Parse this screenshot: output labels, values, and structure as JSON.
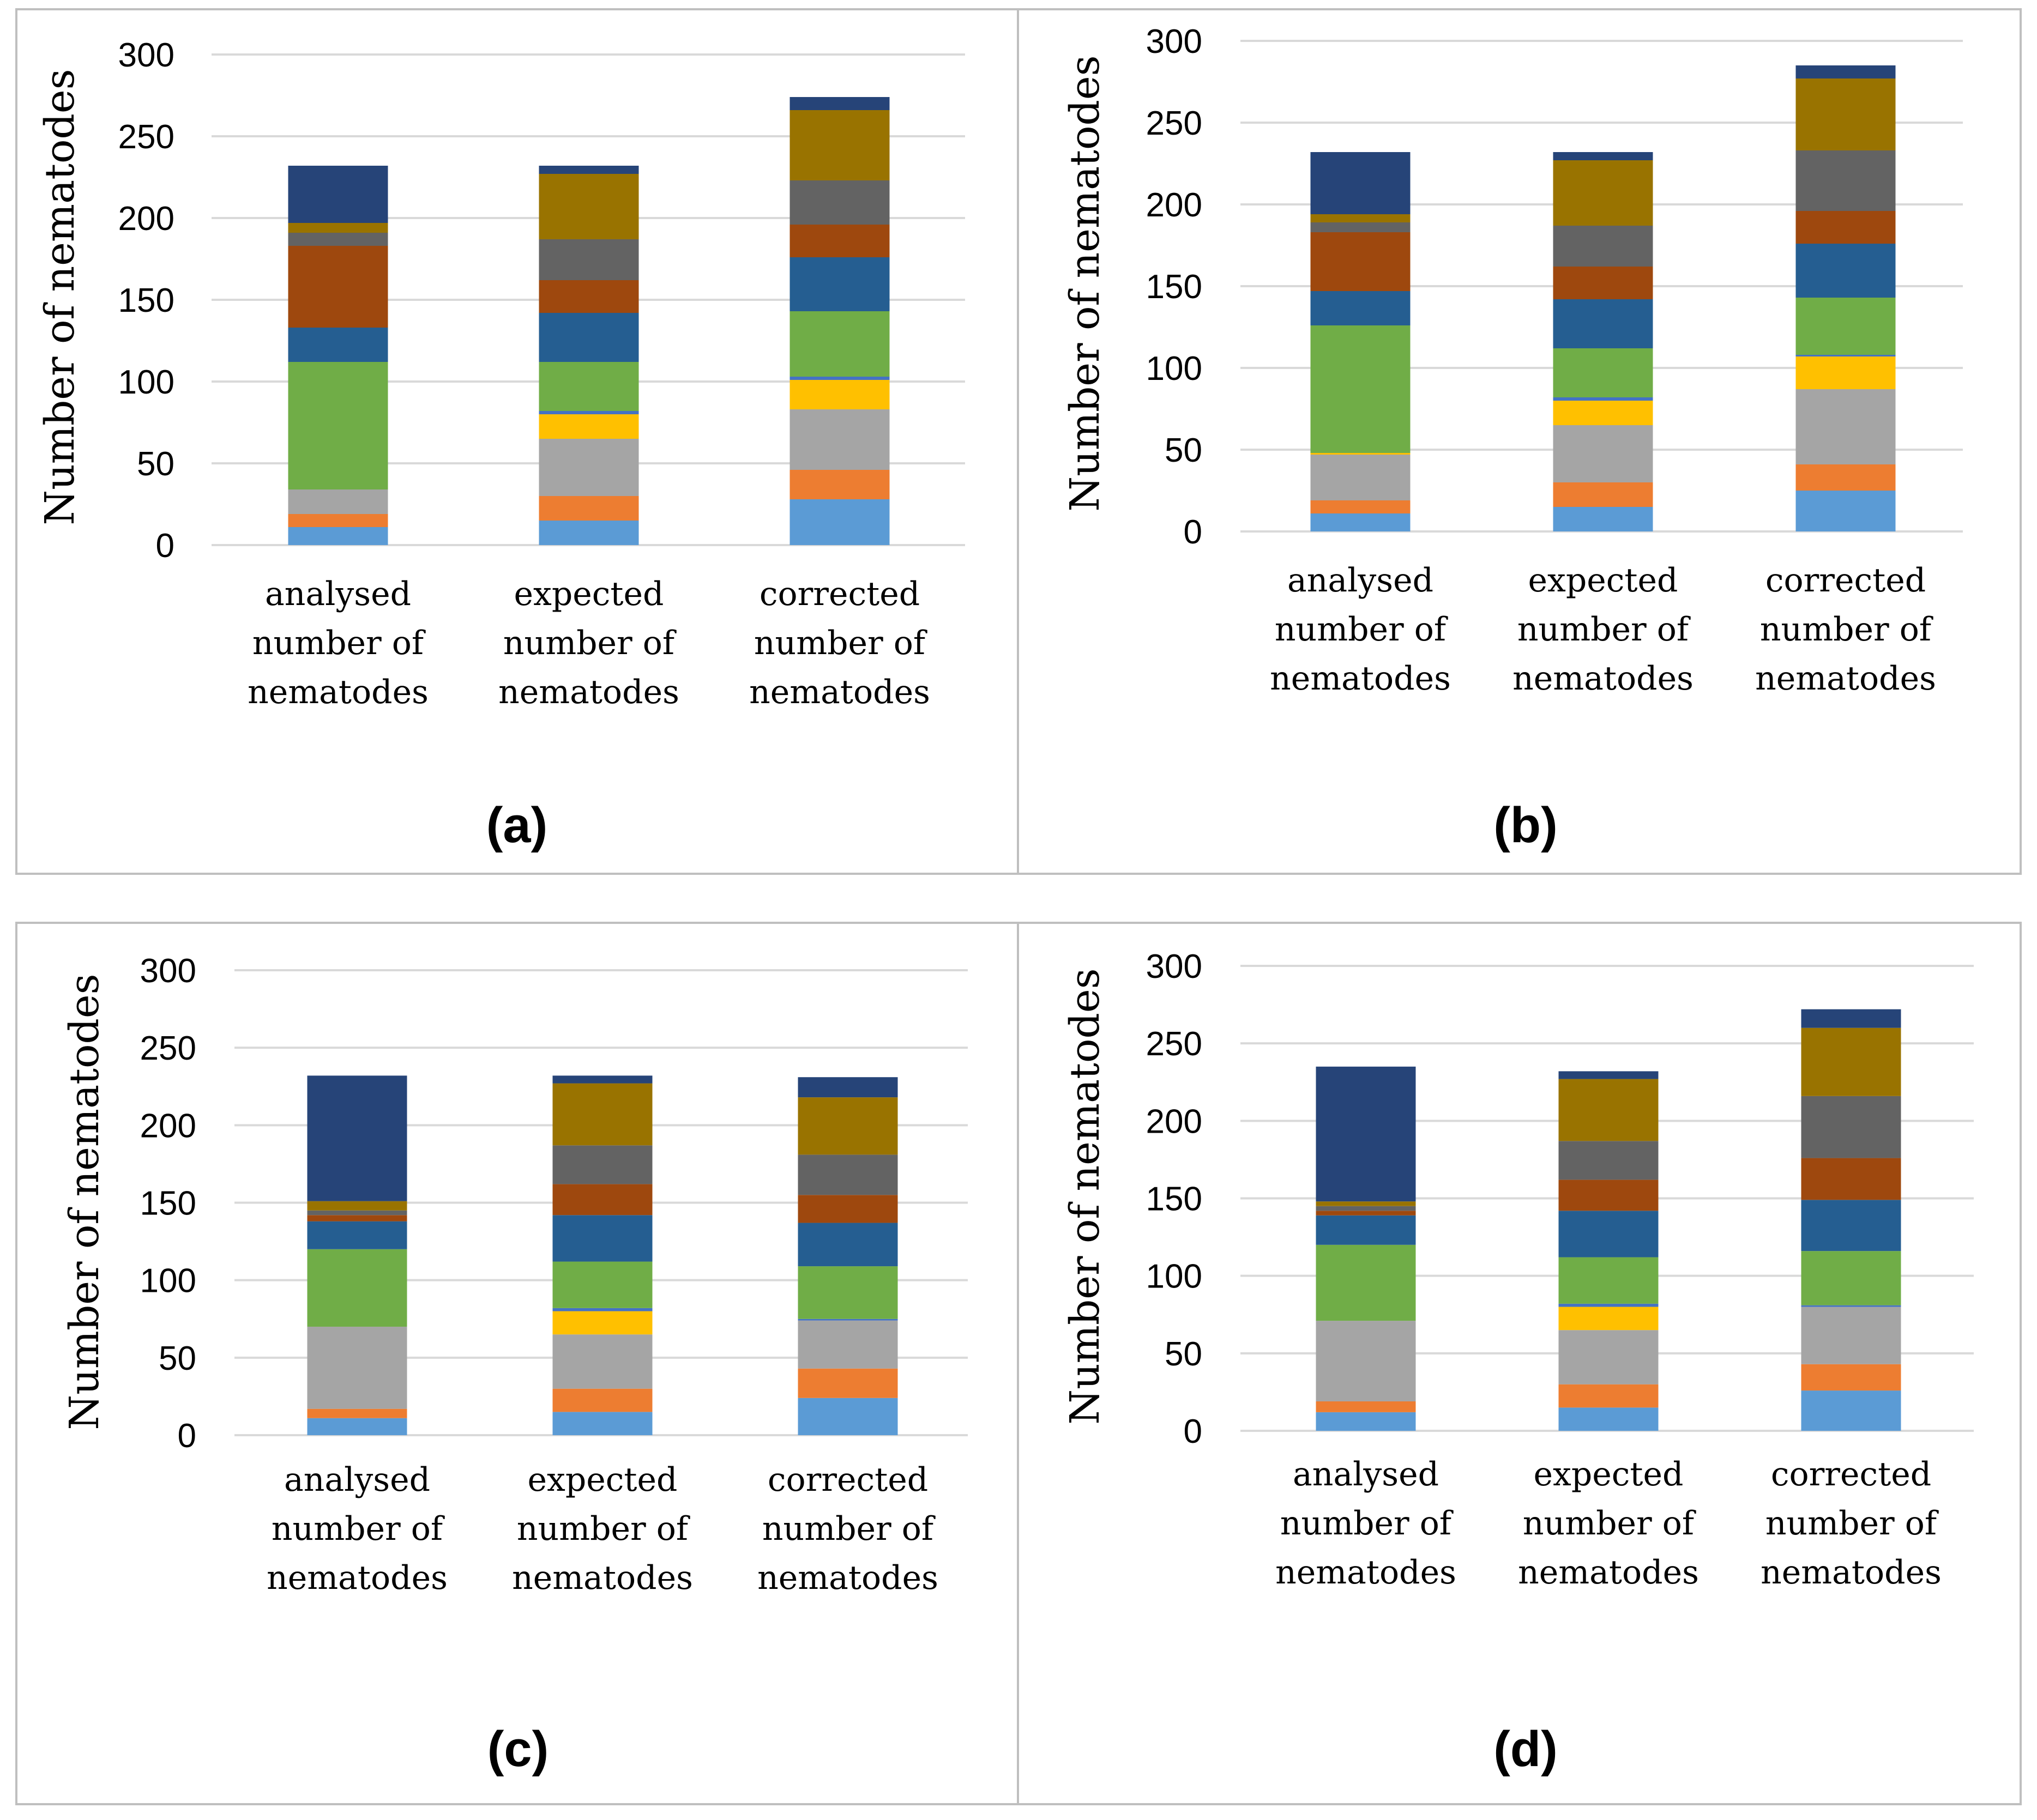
{
  "colors": {
    "segments": [
      "#5B9BD5",
      "#ED7D31",
      "#A5A5A5",
      "#FFC000",
      "#4472C4",
      "#70AD47",
      "#255E91",
      "#9E480E",
      "#636363",
      "#997300",
      "#264478"
    ],
    "grid": "#D9D9D9",
    "frame": "#BFBFBF",
    "text": "#000000"
  },
  "chart_data": [
    {
      "type": "bar",
      "stacked": true,
      "panel_label": "(a)",
      "ylabel": "Number of nematodes",
      "ylim": [
        0,
        300
      ],
      "yticks": [
        0,
        50,
        100,
        150,
        200,
        250,
        300
      ],
      "categories": [
        [
          "analysed",
          "number of",
          "nematodes"
        ],
        [
          "expected",
          "number of",
          "nematodes"
        ],
        [
          "corrected",
          "number of",
          "nematodes"
        ]
      ],
      "bars": [
        [
          11,
          8,
          15,
          0,
          0,
          78,
          21,
          50,
          8,
          6,
          35
        ],
        [
          15,
          15,
          35,
          15,
          2,
          30,
          30,
          20,
          25,
          40,
          5
        ],
        [
          28,
          18,
          37,
          18,
          2,
          40,
          33,
          20,
          27,
          43,
          8
        ]
      ]
    },
    {
      "type": "bar",
      "stacked": true,
      "panel_label": "(b)",
      "ylabel": "Number of nematodes",
      "ylim": [
        0,
        300
      ],
      "yticks": [
        0,
        50,
        100,
        150,
        200,
        250,
        300
      ],
      "categories": [
        [
          "analysed",
          "number of",
          "nematodes"
        ],
        [
          "expected",
          "number of",
          "nematodes"
        ],
        [
          "corrected",
          "number of",
          "nematodes"
        ]
      ],
      "bars": [
        [
          11,
          8,
          28,
          1,
          0,
          78,
          21,
          36,
          6,
          5,
          38
        ],
        [
          15,
          15,
          35,
          15,
          2,
          30,
          30,
          20,
          25,
          40,
          5
        ],
        [
          25,
          16,
          46,
          20,
          1,
          35,
          33,
          20,
          37,
          44,
          8
        ]
      ]
    },
    {
      "type": "bar",
      "stacked": true,
      "panel_label": "(c)",
      "ylabel": "Number of nematodes",
      "ylim": [
        0,
        300
      ],
      "yticks": [
        0,
        50,
        100,
        150,
        200,
        250,
        300
      ],
      "categories": [
        [
          "analysed",
          "number of",
          "nematodes"
        ],
        [
          "expected",
          "number of",
          "nematodes"
        ],
        [
          "corrected",
          "number of",
          "nematodes"
        ]
      ],
      "bars": [
        [
          11,
          6,
          53,
          0,
          0,
          50,
          18,
          4,
          3,
          6,
          81
        ],
        [
          15,
          15,
          35,
          15,
          2,
          30,
          30,
          20,
          25,
          40,
          5
        ],
        [
          24,
          19,
          31,
          0,
          1,
          34,
          28,
          18,
          26,
          37,
          13
        ]
      ]
    },
    {
      "type": "bar",
      "stacked": true,
      "panel_label": "(d)",
      "ylabel": "Number of nematodes",
      "ylim": [
        0,
        300
      ],
      "yticks": [
        0,
        50,
        100,
        150,
        200,
        250,
        300
      ],
      "categories": [
        [
          "analysed",
          "number of",
          "nematodes"
        ],
        [
          "expected",
          "number of",
          "nematodes"
        ],
        [
          "corrected",
          "number of",
          "nematodes"
        ]
      ],
      "bars": [
        [
          12,
          7,
          52,
          0,
          0,
          49,
          19,
          3,
          3,
          3,
          87
        ],
        [
          15,
          15,
          35,
          15,
          2,
          30,
          30,
          20,
          25,
          40,
          5
        ],
        [
          26,
          17,
          37,
          0,
          1,
          35,
          33,
          27,
          40,
          44,
          12
        ]
      ]
    }
  ]
}
